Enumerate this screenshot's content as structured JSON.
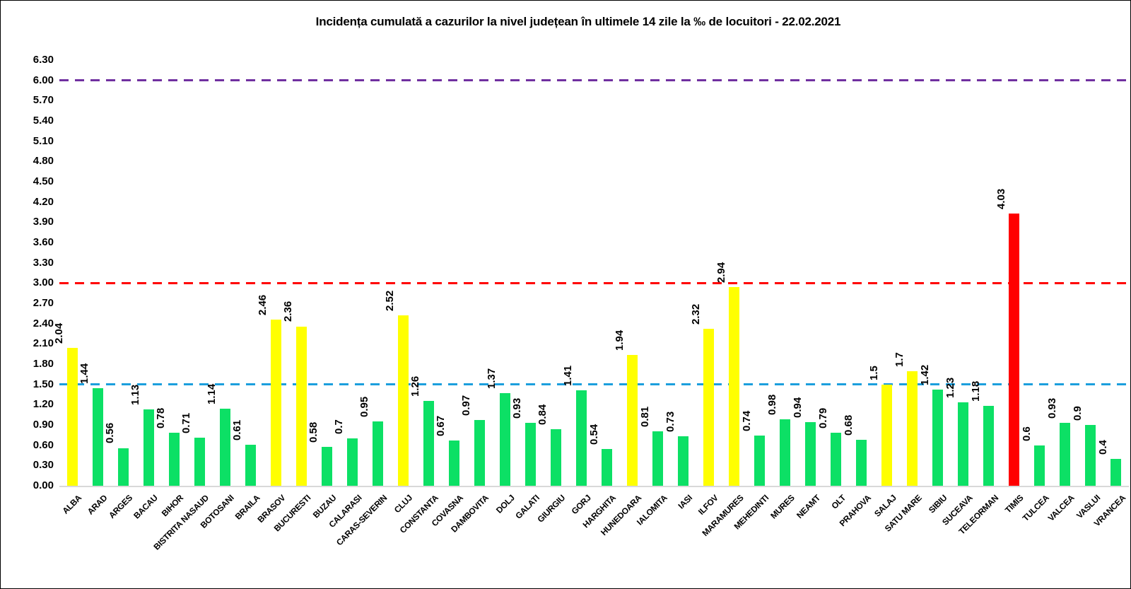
{
  "chart_data": {
    "type": "bar",
    "title": "Incidența cumulată a cazurilor la nivel județean în ultimele 14 zile la ‰ de locuitori - 22.02.2021",
    "categories": [
      "ALBA",
      "ARAD",
      "ARGES",
      "BACAU",
      "BIHOR",
      "BISTRITA NASAUD",
      "BOTOSANI",
      "BRAILA",
      "BRASOV",
      "BUCURESTI",
      "BUZAU",
      "CALARASI",
      "CARAS-SEVERIN",
      "CLUJ",
      "CONSTANTA",
      "COVASNA",
      "DAMBOVITA",
      "DOLJ",
      "GALATI",
      "GIURGIU",
      "GORJ",
      "HARGHITA",
      "HUNEDOARA",
      "IALOMITA",
      "IASI",
      "ILFOV",
      "MARAMURES",
      "MEHEDINTI",
      "MURES",
      "NEAMT",
      "OLT",
      "PRAHOVA",
      "SALAJ",
      "SATU MARE",
      "SIBIU",
      "SUCEAVA",
      "TELEORMAN",
      "TIMIS",
      "TULCEA",
      "VALCEA",
      "VASLUI",
      "VRANCEA"
    ],
    "values": [
      2.04,
      1.44,
      0.56,
      1.13,
      0.78,
      0.71,
      1.14,
      0.61,
      2.46,
      2.36,
      0.58,
      0.7,
      0.95,
      2.52,
      1.26,
      0.67,
      0.97,
      1.37,
      0.93,
      0.84,
      1.41,
      0.54,
      1.94,
      0.81,
      0.73,
      2.32,
      2.94,
      0.74,
      0.98,
      0.94,
      0.79,
      0.68,
      1.5,
      1.7,
      1.42,
      1.23,
      1.18,
      4.03,
      0.6,
      0.93,
      0.9,
      0.4
    ],
    "levels": [
      "yellow",
      "green",
      "green",
      "green",
      "green",
      "green",
      "green",
      "green",
      "yellow",
      "yellow",
      "green",
      "green",
      "green",
      "yellow",
      "green",
      "green",
      "green",
      "green",
      "green",
      "green",
      "green",
      "green",
      "yellow",
      "green",
      "green",
      "yellow",
      "yellow",
      "green",
      "green",
      "green",
      "green",
      "green",
      "yellow",
      "yellow",
      "green",
      "green",
      "green",
      "red",
      "green",
      "green",
      "green",
      "green"
    ],
    "level_colors": {
      "green": "#0ce065",
      "yellow": "#ffff00",
      "red": "#ff0000"
    },
    "y_axis": {
      "min": 0,
      "max": 6.3,
      "step": 0.3,
      "tick_labels": [
        "0.00",
        "0.30",
        "0.60",
        "0.90",
        "1.20",
        "1.50",
        "1.80",
        "2.10",
        "2.40",
        "2.70",
        "3.00",
        "3.30",
        "3.60",
        "3.90",
        "4.20",
        "4.50",
        "4.80",
        "5.10",
        "5.40",
        "5.70",
        "6.00",
        "6.30"
      ]
    },
    "reference_lines": [
      {
        "value": 6.0,
        "color": "#7030a0",
        "style": "dashed"
      },
      {
        "value": 3.0,
        "color": "#ff0000",
        "style": "dashed"
      },
      {
        "value": 1.5,
        "color": "#1b9fdd",
        "style": "dashed"
      }
    ],
    "xlabel": "",
    "ylabel": "",
    "grid": false,
    "legend": false,
    "axis_line_color": "#d9d9d9"
  }
}
